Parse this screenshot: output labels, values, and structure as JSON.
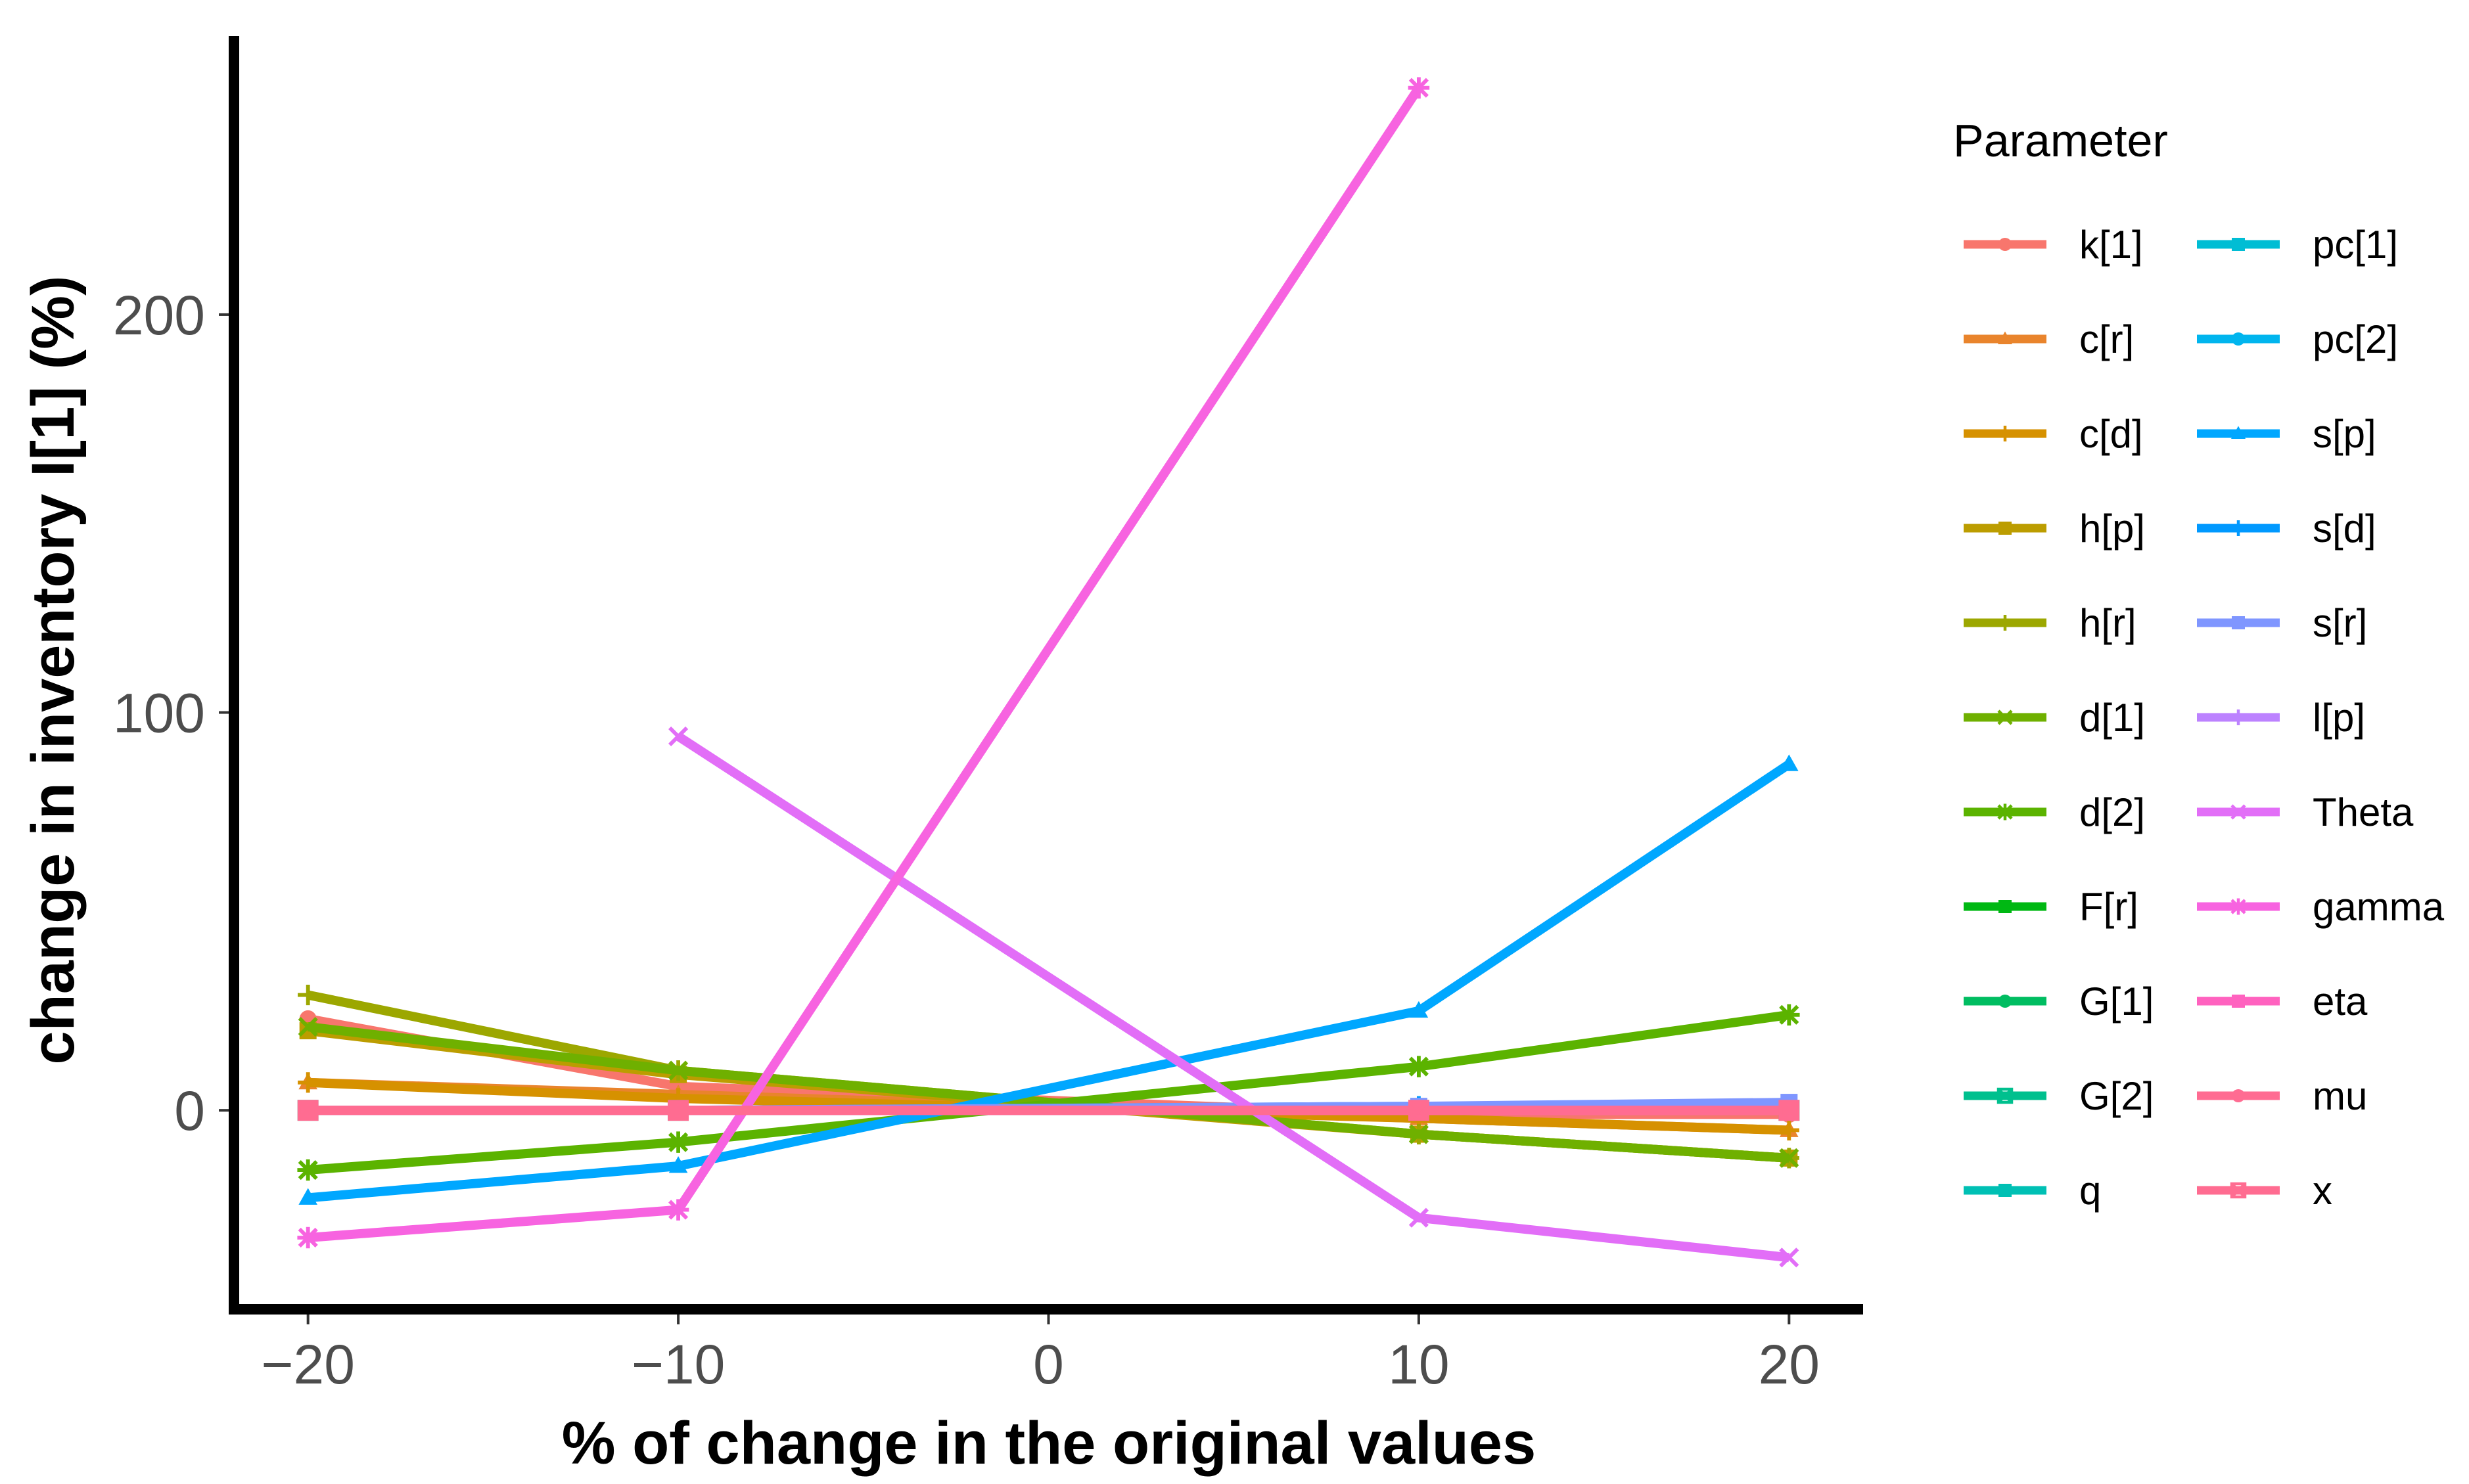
{
  "chart_data": {
    "type": "line",
    "xlabel": "% of change in the original values",
    "ylabel": "change in inventory I[1] (%)",
    "xlim": [
      -22,
      22
    ],
    "ylim": [
      -50,
      270
    ],
    "x_ticks": [
      -20,
      -10,
      0,
      10,
      20
    ],
    "y_ticks": [
      0,
      100,
      200
    ],
    "x_tick_labels": [
      "−20",
      "−10",
      "0",
      "10",
      "20"
    ],
    "y_tick_labels": [
      "0",
      "100",
      "200"
    ],
    "grid": false,
    "legend": {
      "title": "Parameter",
      "placement": "right",
      "columns": 2
    },
    "series": [
      {
        "name": "k[1]",
        "color": "#F8766D",
        "marker": "circle",
        "x": [
          -20,
          -10,
          10,
          20
        ],
        "y": [
          23,
          6,
          -1,
          -1
        ]
      },
      {
        "name": "c[r]",
        "color": "#E9842C",
        "marker": "triangle",
        "x": [
          -20,
          -10,
          10,
          20
        ],
        "y": [
          7,
          4,
          -2,
          -5
        ]
      },
      {
        "name": "c[d]",
        "color": "#D69100",
        "marker": "plus",
        "x": [
          -20,
          -10,
          10,
          20
        ],
        "y": [
          7,
          3,
          -2,
          -5
        ]
      },
      {
        "name": "h[p]",
        "color": "#BC9D00",
        "marker": "square",
        "x": [
          -20,
          -10,
          10,
          20
        ],
        "y": [
          20,
          9,
          -6,
          -12
        ]
      },
      {
        "name": "h[r]",
        "color": "#9CA700",
        "marker": "plus",
        "x": [
          -20,
          -10,
          10,
          20
        ],
        "y": [
          29,
          10,
          -6,
          -12
        ]
      },
      {
        "name": "d[1]",
        "color": "#6FB000",
        "marker": "x",
        "x": [
          -20,
          -10,
          10,
          20
        ],
        "y": [
          21,
          10,
          -6,
          -12
        ]
      },
      {
        "name": "d[2]",
        "color": "#5BB300",
        "marker": "asterisk",
        "x": [
          -20,
          -10,
          10,
          20
        ],
        "y": [
          -15,
          -8,
          11,
          24
        ]
      },
      {
        "name": "F[r]",
        "color": "#00B813",
        "marker": "square",
        "x": [
          -20,
          -10,
          10,
          20
        ],
        "y": [
          0,
          0,
          0,
          0
        ]
      },
      {
        "name": "G[1]",
        "color": "#00BD61",
        "marker": "circle",
        "x": [
          -20,
          -10,
          10,
          20
        ],
        "y": [
          0,
          0,
          0,
          0
        ]
      },
      {
        "name": "G[2]",
        "color": "#00C08E",
        "marker": "square-cross",
        "x": [
          -20,
          -10,
          10,
          20
        ],
        "y": [
          0,
          0,
          0,
          0
        ]
      },
      {
        "name": "q",
        "color": "#00C0B4",
        "marker": "square",
        "x": [
          -20,
          -10,
          10,
          20
        ],
        "y": [
          0,
          0,
          0,
          0
        ]
      },
      {
        "name": "pc[1]",
        "color": "#00BDD4",
        "marker": "square",
        "x": [
          -20,
          -10,
          10,
          20
        ],
        "y": [
          0,
          0,
          0,
          0
        ]
      },
      {
        "name": "pc[2]",
        "color": "#00B5EE",
        "marker": "circle",
        "x": [
          -20,
          -10,
          10,
          20
        ],
        "y": [
          0,
          0,
          0,
          0
        ]
      },
      {
        "name": "s[p]",
        "color": "#00A7FF",
        "marker": "triangle",
        "x": [
          -20,
          -10,
          10,
          20
        ],
        "y": [
          -22,
          -14,
          25,
          87
        ]
      },
      {
        "name": "s[d]",
        "color": "#0099FF",
        "marker": "plus",
        "x": [
          -20,
          -10,
          10,
          20
        ],
        "y": [
          0,
          0,
          1,
          1
        ]
      },
      {
        "name": "s[r]",
        "color": "#7F96FF",
        "marker": "square",
        "x": [
          -20,
          -10,
          10,
          20
        ],
        "y": [
          0,
          0,
          1,
          2
        ]
      },
      {
        "name": "l[p]",
        "color": "#BC82FF",
        "marker": "plus",
        "x": [
          -20,
          -10,
          10,
          20
        ],
        "y": [
          0,
          0,
          0,
          0
        ]
      },
      {
        "name": "Theta",
        "color": "#E26EF7",
        "marker": "x",
        "x": [
          -10,
          10,
          20
        ],
        "y": [
          94,
          -27,
          -37
        ]
      },
      {
        "name": "gamma",
        "color": "#F763E0",
        "marker": "asterisk",
        "x": [
          -20,
          -10,
          10
        ],
        "y": [
          -32,
          -25,
          257
        ]
      },
      {
        "name": "eta",
        "color": "#FF62BF",
        "marker": "square",
        "x": [
          -20,
          -10,
          10,
          20
        ],
        "y": [
          0,
          0,
          0,
          0
        ]
      },
      {
        "name": "mu",
        "color": "#FF6C92",
        "marker": "circle",
        "x": [
          -20,
          -10,
          10,
          20
        ],
        "y": [
          0,
          0,
          0,
          0
        ]
      },
      {
        "name": "x",
        "color": "#FF6C91",
        "marker": "square-cross",
        "x": [
          -20,
          -10,
          10,
          20
        ],
        "y": [
          0,
          0,
          0,
          0
        ]
      }
    ]
  }
}
